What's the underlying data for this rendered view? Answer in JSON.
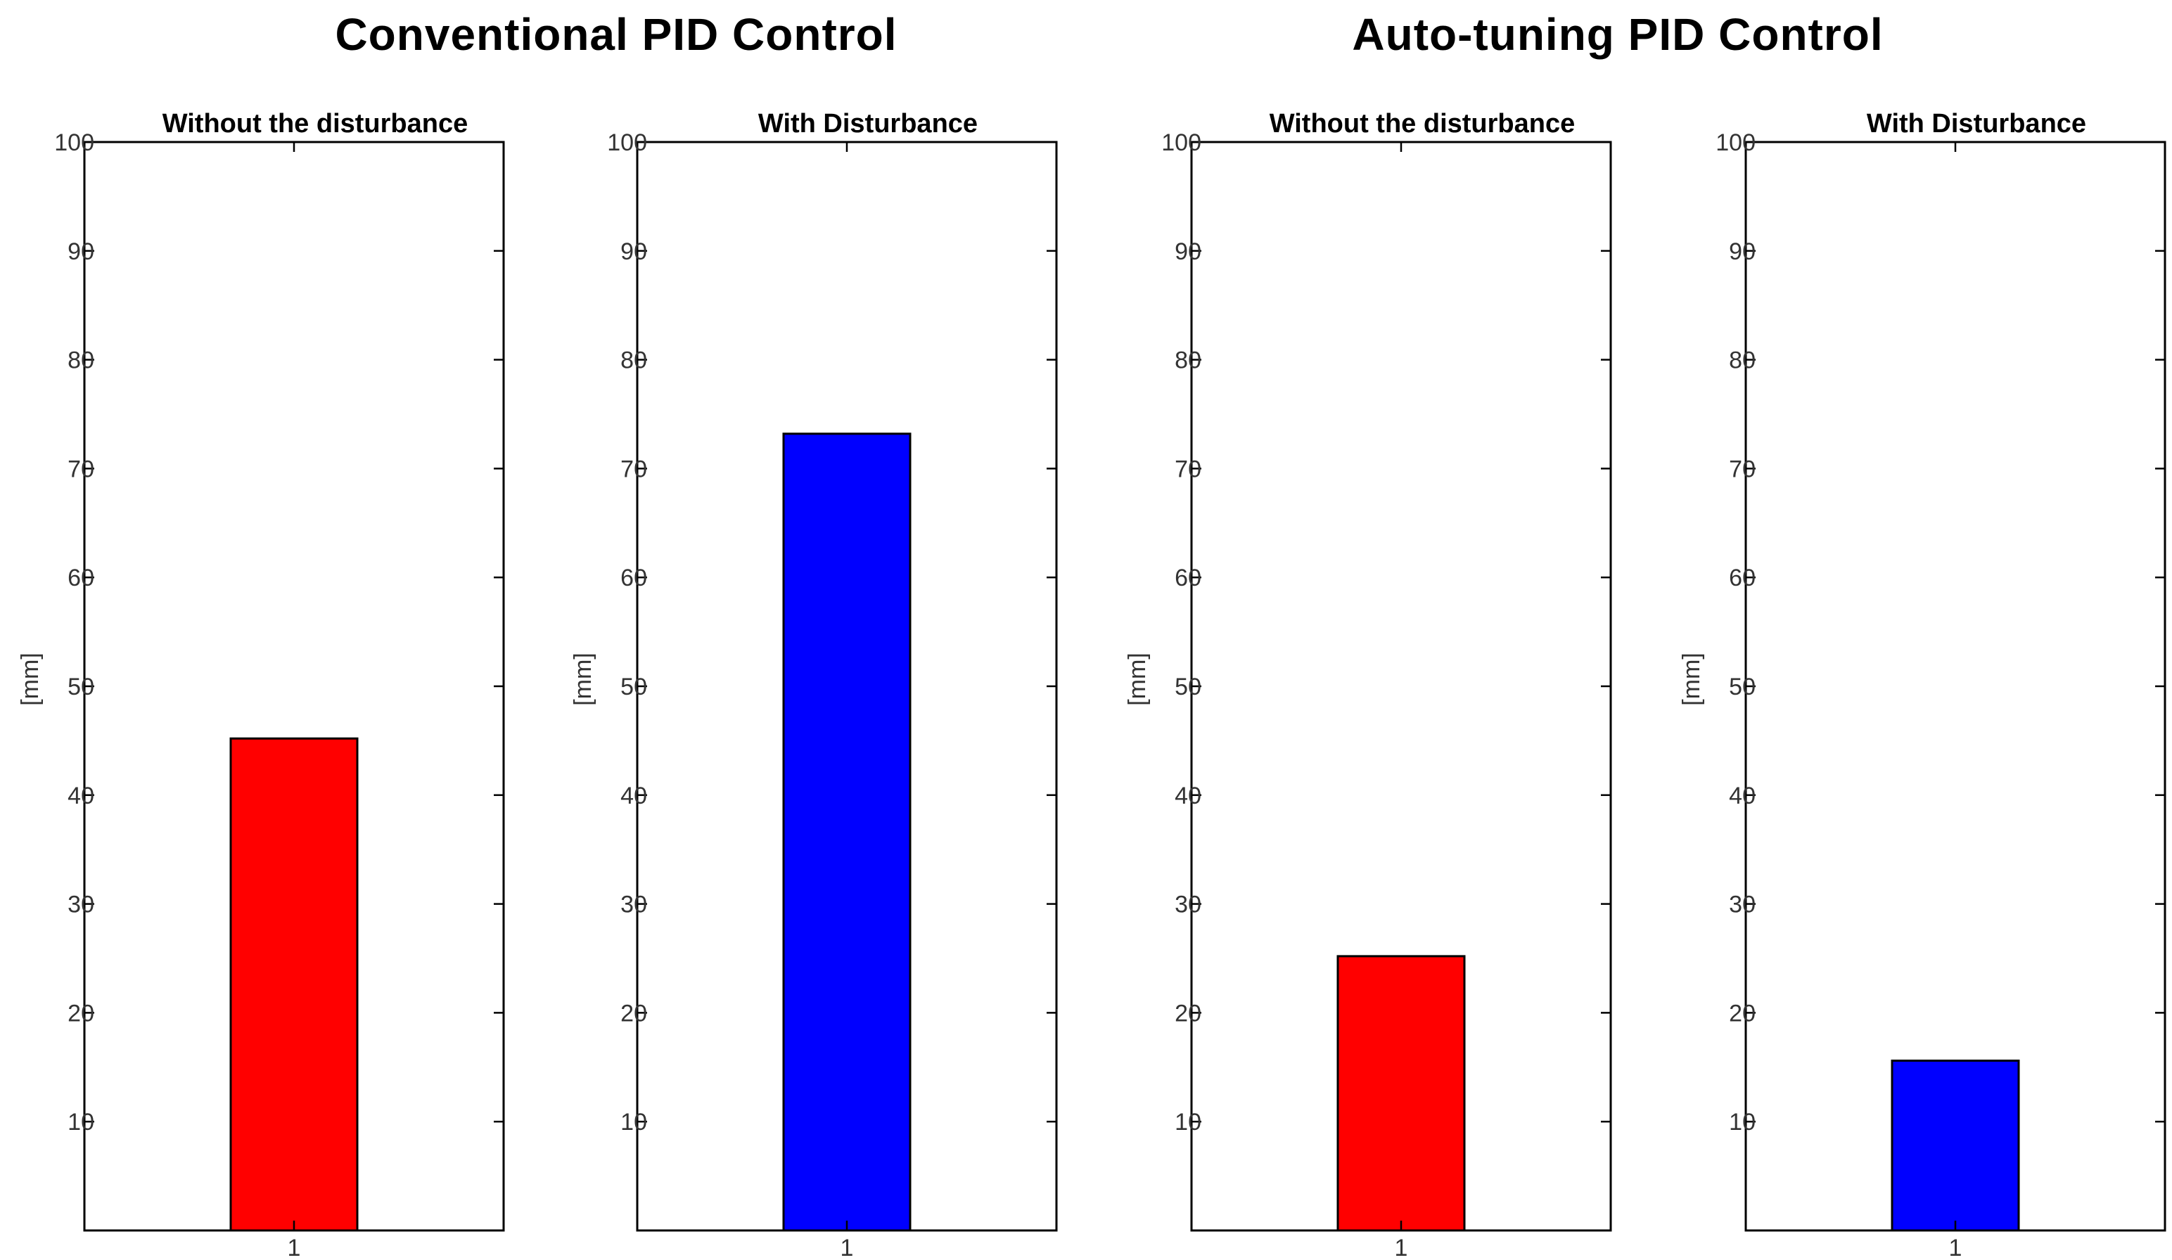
{
  "group_titles": [
    "Conventional PID Control",
    "Auto-tuning PID Control"
  ],
  "chart_data": [
    {
      "type": "bar",
      "group": "Conventional PID Control",
      "title": "Without the disturbance",
      "categories": [
        "1"
      ],
      "values": [
        45.2
      ],
      "color": "#ff0000",
      "xlabel": "",
      "ylabel": "[mm]",
      "ylim": [
        0,
        100
      ],
      "yticks": [
        10,
        20,
        30,
        40,
        50,
        60,
        70,
        80,
        90,
        100
      ]
    },
    {
      "type": "bar",
      "group": "Conventional PID Control",
      "title": "With Disturbance",
      "categories": [
        "1"
      ],
      "values": [
        73.2
      ],
      "color": "#0000ff",
      "xlabel": "",
      "ylabel": "[mm]",
      "ylim": [
        0,
        100
      ],
      "yticks": [
        10,
        20,
        30,
        40,
        50,
        60,
        70,
        80,
        90,
        100
      ]
    },
    {
      "type": "bar",
      "group": "Auto-tuning PID Control",
      "title": "Without the disturbance",
      "categories": [
        "1"
      ],
      "values": [
        25.2
      ],
      "color": "#ff0000",
      "xlabel": "",
      "ylabel": "[mm]",
      "ylim": [
        0,
        100
      ],
      "yticks": [
        10,
        20,
        30,
        40,
        50,
        60,
        70,
        80,
        90,
        100
      ]
    },
    {
      "type": "bar",
      "group": "Auto-tuning PID Control",
      "title": "With Disturbance",
      "categories": [
        "1"
      ],
      "values": [
        15.6
      ],
      "color": "#0000ff",
      "xlabel": "",
      "ylabel": "[mm]",
      "ylim": [
        0,
        100
      ],
      "yticks": [
        10,
        20,
        30,
        40,
        50,
        60,
        70,
        80,
        90,
        100
      ]
    }
  ]
}
